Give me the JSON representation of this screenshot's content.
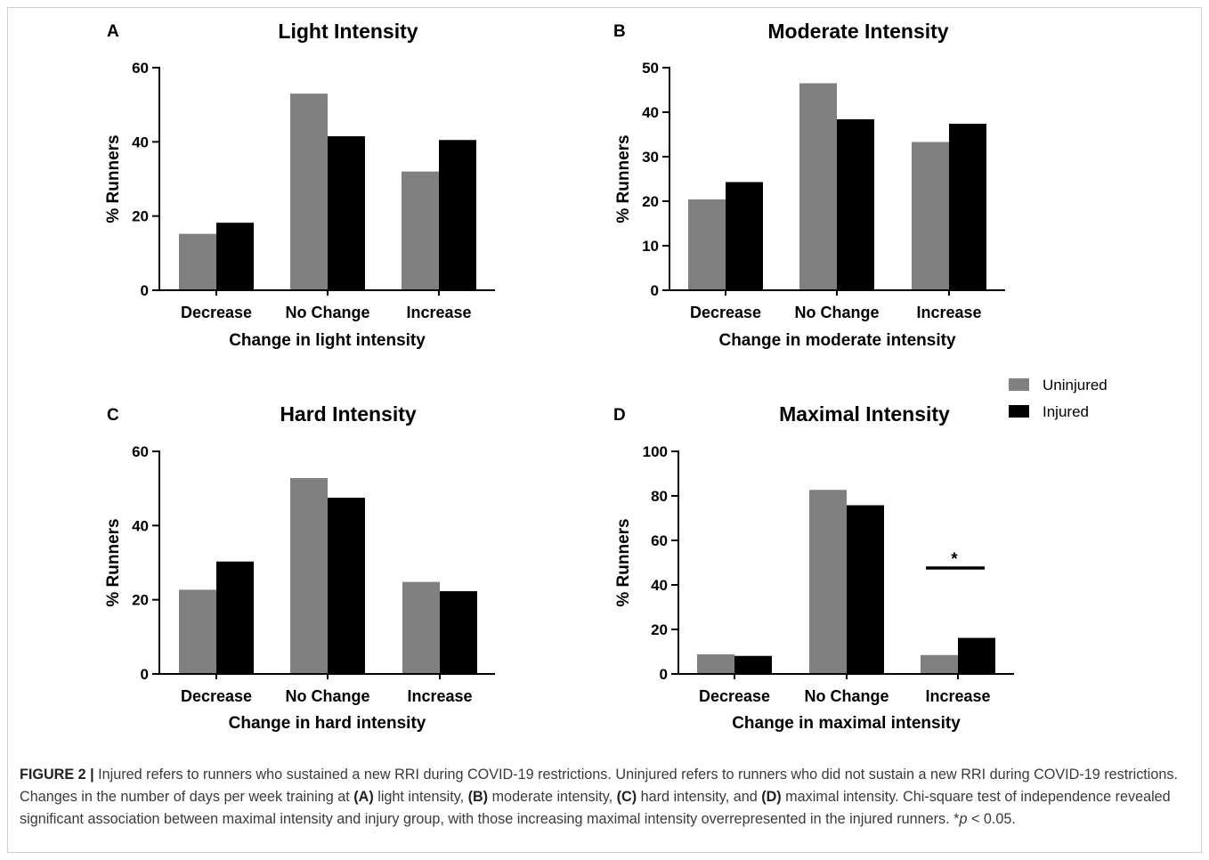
{
  "chart_data": [
    {
      "type": "bar",
      "panel": "A",
      "title": "Light Intensity",
      "xlabel": "Change in light intensity",
      "ylabel": "% Runners",
      "ylim": [
        0,
        60
      ],
      "yticks": [
        0,
        20,
        40,
        60
      ],
      "categories": [
        "Decrease",
        "No Change",
        "Increase"
      ],
      "series": [
        {
          "name": "Uninjured",
          "values": [
            15.2,
            53.0,
            32.0
          ]
        },
        {
          "name": "Injured",
          "values": [
            18.2,
            41.5,
            40.5
          ]
        }
      ]
    },
    {
      "type": "bar",
      "panel": "B",
      "title": "Moderate Intensity",
      "xlabel": "Change in moderate intensity",
      "ylabel": "% Runners",
      "ylim": [
        0,
        50
      ],
      "yticks": [
        0,
        10,
        20,
        30,
        40,
        50
      ],
      "categories": [
        "Decrease",
        "No Change",
        "Increase"
      ],
      "series": [
        {
          "name": "Uninjured",
          "values": [
            20.4,
            46.5,
            33.3
          ]
        },
        {
          "name": "Injured",
          "values": [
            24.3,
            38.4,
            37.4
          ]
        }
      ]
    },
    {
      "type": "bar",
      "panel": "C",
      "title": "Hard Intensity",
      "xlabel": "Change in hard intensity",
      "ylabel": "% Runners",
      "ylim": [
        0,
        60
      ],
      "yticks": [
        0,
        20,
        40,
        60
      ],
      "categories": [
        "Decrease",
        "No Change",
        "Increase"
      ],
      "series": [
        {
          "name": "Uninjured",
          "values": [
            22.7,
            52.8,
            24.8
          ]
        },
        {
          "name": "Injured",
          "values": [
            30.3,
            47.5,
            22.3
          ]
        }
      ]
    },
    {
      "type": "bar",
      "panel": "D",
      "title": "Maximal  Intensity",
      "xlabel": "Change in maximal intensity",
      "ylabel": "% Runners",
      "ylim": [
        0,
        100
      ],
      "yticks": [
        0,
        20,
        40,
        60,
        80,
        100
      ],
      "categories": [
        "Decrease",
        "No Change",
        "Increase"
      ],
      "series": [
        {
          "name": "Uninjured",
          "values": [
            8.8,
            82.7,
            8.5
          ]
        },
        {
          "name": "Injured",
          "values": [
            8.1,
            75.8,
            16.2
          ]
        }
      ],
      "annotation": {
        "category": "Increase",
        "text": "*"
      }
    }
  ],
  "legend": {
    "items": [
      {
        "label": "Uninjured",
        "color": "#808080"
      },
      {
        "label": "Injured",
        "color": "#000000"
      }
    ]
  },
  "colors": {
    "uninjured": "#808080",
    "injured": "#000000"
  },
  "caption": {
    "label": "FIGURE 2 |",
    "s1": " Injured refers to runners who sustained a new RRI during COVID-19 restrictions. Uninjured refers to runners who did not sustain a new RRI during COVID-19 restrictions. Changes in the number of days per week training at ",
    "a": "(A)",
    "s2": " light intensity, ",
    "b": "(B)",
    "s3": " moderate intensity, ",
    "c": "(C)",
    "s4": " hard intensity, and ",
    "d": "(D)",
    "s5": " maximal intensity. Chi-square test of independence revealed significant association between maximal intensity and injury group, with those increasing maximal intensity overrepresented in the injured runners. *",
    "p": "p",
    "s6": " < 0.05."
  }
}
